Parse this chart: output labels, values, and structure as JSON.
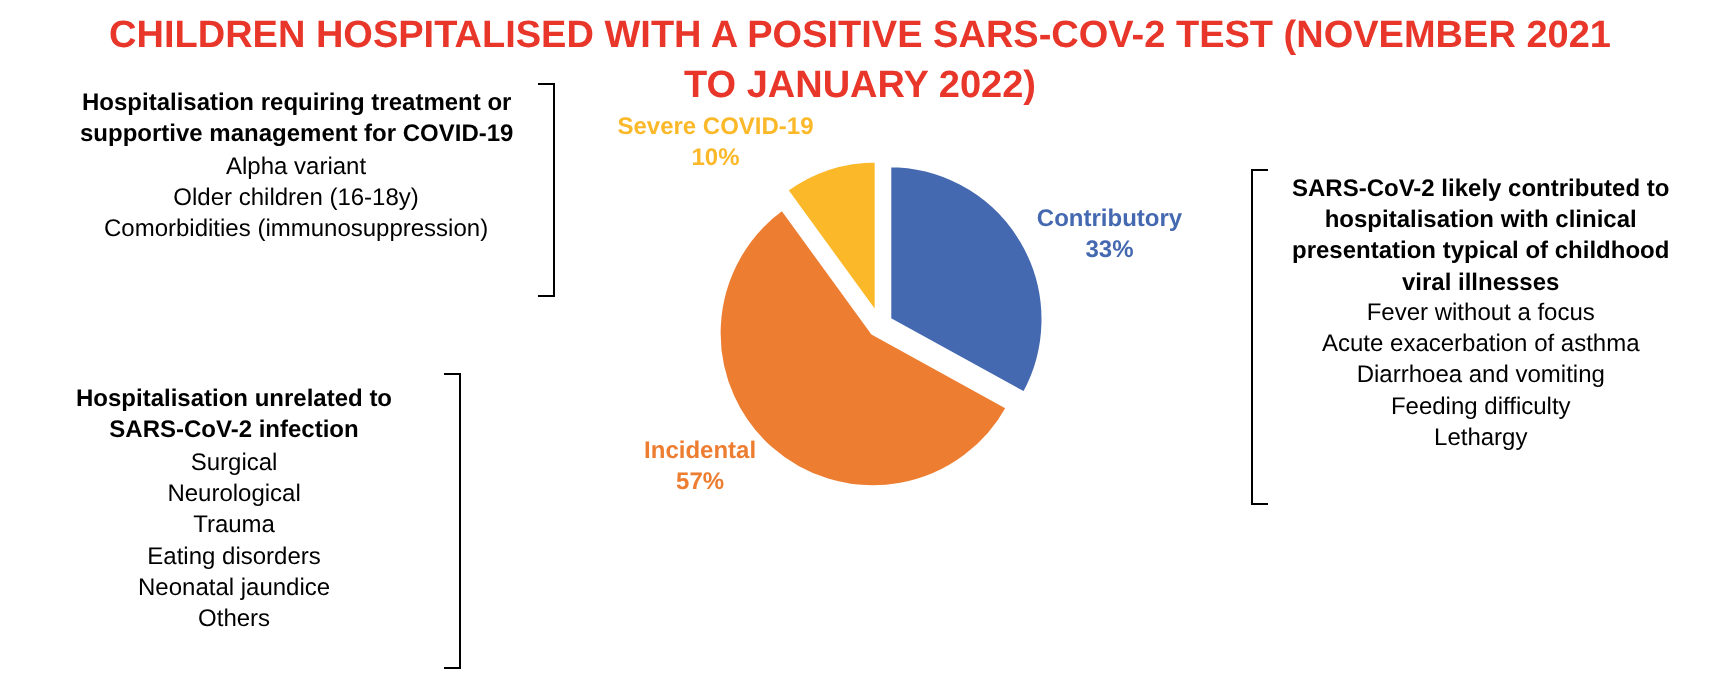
{
  "chart_data": {
    "type": "pie",
    "title": "CHILDREN HOSPITALISED WITH A POSITIVE SARS-COV-2 TEST (NOVEMBER 2021\nTO JANUARY 2022)",
    "categories": [
      "Contributory",
      "Incidental",
      "Severe COVID-19"
    ],
    "values": [
      33,
      57,
      10
    ],
    "value_labels": [
      "33%",
      "57%",
      "10%"
    ],
    "colors": [
      "#4569b0",
      "#ed7d31",
      "#fbb829"
    ],
    "legend": false,
    "annotations": [
      "Hospitalisation requiring treatment or\nsupportive management for COVID-19",
      "Alpha variant\nOlder children (16-18y)\nComorbidities (immunosuppression)",
      "Hospitalisation unrelated to\nSARS-CoV-2 infection",
      "Surgical\nNeurological\nTrauma\nEating disorders\nNeonatal jaundice\nOthers",
      "SARS-CoV-2 likely contributed to\nhospitalisation with clinical\npresentation typical of childhood\nviral illnesses",
      "Fever without a focus\nAcute exacerbation of asthma\nDiarrhoea and vomiting\nFeeding difficulty\nLethargy"
    ]
  }
}
